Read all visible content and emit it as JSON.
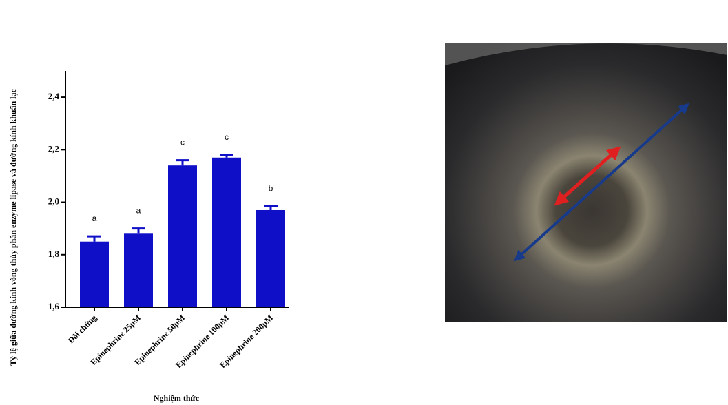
{
  "chart_data": {
    "type": "bar",
    "categories": [
      "Đối chứng",
      "Epinephrine 25µM",
      "Epinephrine 50µM",
      "Epinephrine 100µM",
      "Epinephrine 200µM"
    ],
    "values": [
      1.85,
      1.88,
      2.14,
      2.17,
      1.97
    ],
    "errors": [
      0.02,
      0.02,
      0.02,
      0.01,
      0.015
    ],
    "annotations": [
      "a",
      "a",
      "c",
      "c",
      "b"
    ],
    "color": "#0f0fc8",
    "ylim": [
      1.6,
      2.5
    ],
    "yticks": [
      {
        "value": 1.6,
        "label": "1,6"
      },
      {
        "value": 1.8,
        "label": "1,8"
      },
      {
        "value": 2.0,
        "label": "2,0"
      },
      {
        "value": 2.2,
        "label": "2,2"
      },
      {
        "value": 2.4,
        "label": "2,4"
      }
    ],
    "xlabel": "Nghiệm thức",
    "ylabel": "Tỷ lệ giữa đường kính vòng thủy phân enzyme lipase và đường kính khuẩn lạc"
  }
}
